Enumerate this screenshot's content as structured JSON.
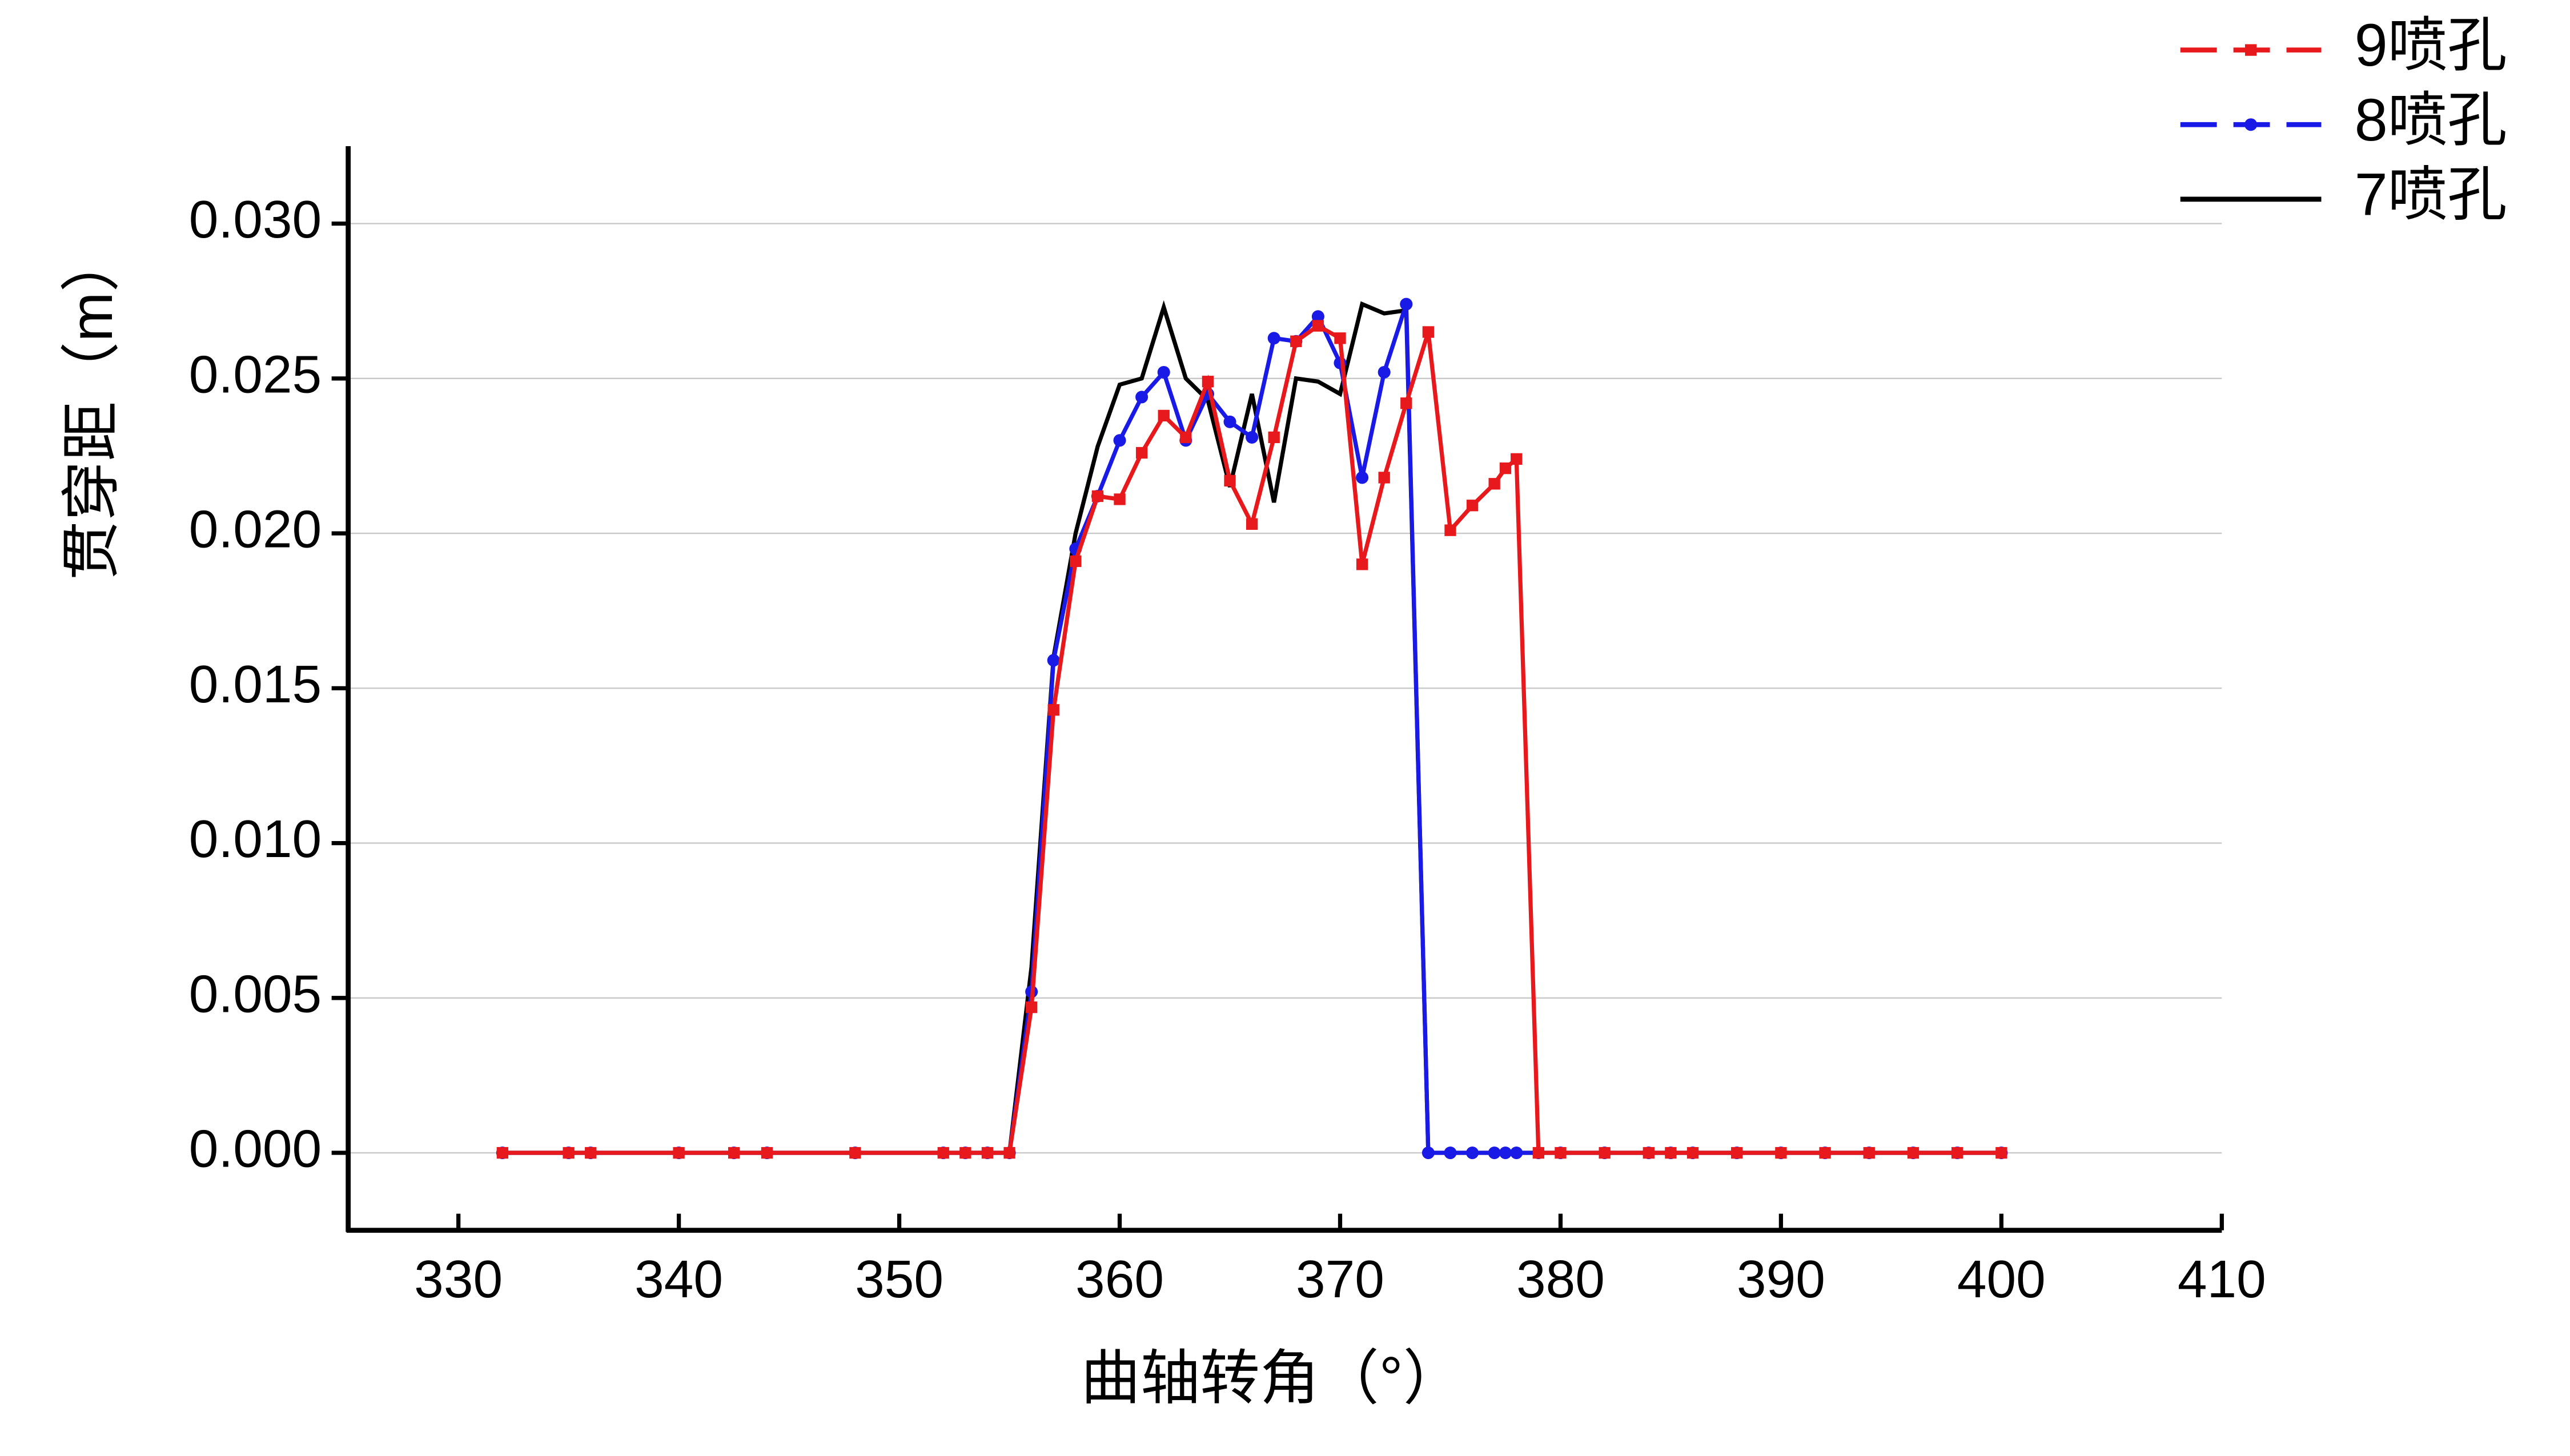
{
  "chart_data": {
    "type": "line",
    "x_label": "曲轴转角（°）",
    "y_label": "贯穿距（m）",
    "xlim": [
      325,
      410
    ],
    "xticks": [
      330,
      340,
      350,
      360,
      370,
      380,
      390,
      400,
      410
    ],
    "ylim": [
      -0.0025,
      0.0325
    ],
    "yticks": [
      {
        "value": 0,
        "label": "0.000"
      },
      {
        "value": 0.005,
        "label": "0.005"
      },
      {
        "value": 0.01,
        "label": "0.010"
      },
      {
        "value": 0.015,
        "label": "0.015"
      },
      {
        "value": 0.02,
        "label": "0.020"
      },
      {
        "value": 0.025,
        "label": "0.025"
      },
      {
        "value": 0.03,
        "label": "0.030"
      }
    ],
    "grid": true,
    "legend": "top-right",
    "x": [
      332,
      335,
      336,
      340,
      342.5,
      344,
      348,
      352,
      353,
      354,
      355,
      356,
      357,
      358,
      359,
      360,
      361,
      362,
      363,
      364,
      365,
      366,
      367,
      368,
      369,
      370,
      371,
      372,
      373,
      374,
      375,
      376,
      377,
      377.5,
      378,
      379,
      380,
      382,
      384,
      385,
      386,
      388,
      390,
      392,
      394,
      396,
      398,
      400
    ],
    "series": [
      {
        "name": "9喷孔",
        "color": "#e8191c",
        "dashed": true,
        "marker": "square",
        "values": [
          0,
          0,
          0,
          0,
          0,
          0,
          0,
          0,
          0,
          0,
          0,
          0.0047,
          0.0143,
          0.0191,
          0.0212,
          0.0211,
          0.0226,
          0.0238,
          0.0231,
          0.0249,
          0.0217,
          0.0203,
          0.0231,
          0.0262,
          0.0267,
          0.0263,
          0.019,
          0.0218,
          0.0242,
          0.0265,
          0.0201,
          0.0209,
          0.0216,
          0.0221,
          0.0224,
          0,
          0,
          0,
          0,
          0,
          0,
          0,
          0,
          0,
          0,
          0,
          0,
          0
        ]
      },
      {
        "name": "8喷孔",
        "color": "#1a1ae6",
        "dashed": true,
        "marker": "circle",
        "values": [
          0,
          0,
          0,
          0,
          0,
          0,
          0,
          0,
          0,
          0,
          0,
          0.0052,
          0.0159,
          0.0195,
          0.0212,
          0.023,
          0.0244,
          0.0252,
          0.023,
          0.0245,
          0.0236,
          0.0231,
          0.0263,
          0.0262,
          0.027,
          0.0255,
          0.0218,
          0.0252,
          0.0274,
          0,
          0,
          0,
          0,
          0,
          0,
          0,
          0,
          0,
          0,
          0,
          0,
          0,
          0,
          0,
          0,
          0,
          0,
          0
        ]
      },
      {
        "name": "7喷孔",
        "color": "#000000",
        "dashed": false,
        "marker": "none",
        "values": [
          0,
          0,
          0,
          0,
          0,
          0,
          0,
          0,
          0,
          0,
          0,
          0.006,
          0.016,
          0.02,
          0.0228,
          0.0248,
          0.025,
          0.0273,
          0.025,
          0.0243,
          0.0215,
          0.0245,
          0.021,
          0.025,
          0.0249,
          0.0245,
          0.0274,
          0.0271,
          0.0272,
          0,
          0,
          0,
          0,
          0,
          0,
          0,
          0,
          0,
          0,
          0,
          0,
          0,
          0,
          0,
          0,
          0,
          0,
          0
        ]
      }
    ]
  }
}
